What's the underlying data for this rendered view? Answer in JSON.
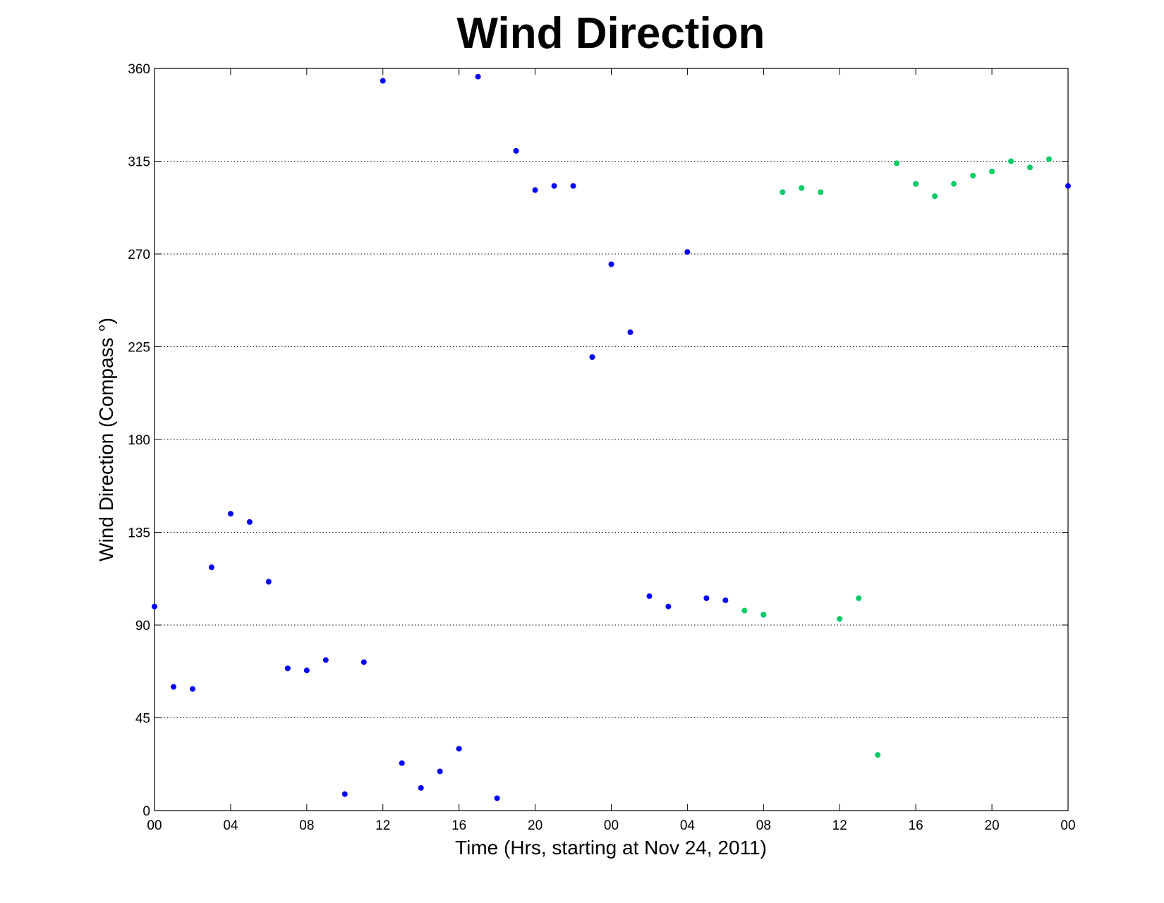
{
  "chart_data": {
    "type": "scatter",
    "title": "Wind Direction",
    "xlabel": "Time (Hrs, starting at Nov 24, 2011)",
    "ylabel": "Wind Direction (Compass  °)",
    "xlim": [
      0,
      48
    ],
    "ylim": [
      0,
      360
    ],
    "x_ticks": [
      0,
      4,
      8,
      12,
      16,
      20,
      24,
      28,
      32,
      36,
      40,
      44,
      48
    ],
    "x_tick_labels": [
      "00",
      "04",
      "08",
      "12",
      "16",
      "20",
      "00",
      "04",
      "08",
      "12",
      "16",
      "20",
      "00"
    ],
    "y_ticks": [
      0,
      45,
      90,
      135,
      180,
      225,
      270,
      315,
      360
    ],
    "y_tick_labels": [
      "0",
      "45",
      "90",
      "135",
      "180",
      "225",
      "270",
      "315",
      "360"
    ],
    "grid": "horizontal dotted",
    "series": [
      {
        "color": "#0000ff",
        "points": [
          [
            0,
            99
          ],
          [
            1,
            60
          ],
          [
            2,
            59
          ],
          [
            3,
            118
          ],
          [
            4,
            144
          ],
          [
            5,
            140
          ],
          [
            6,
            111
          ],
          [
            7,
            69
          ],
          [
            8,
            68
          ],
          [
            9,
            73
          ],
          [
            10,
            8
          ],
          [
            11,
            72
          ],
          [
            12,
            354
          ],
          [
            13,
            23
          ],
          [
            14,
            11
          ],
          [
            15,
            19
          ],
          [
            16,
            30
          ],
          [
            17,
            356
          ],
          [
            18,
            6
          ],
          [
            19,
            320
          ],
          [
            20,
            301
          ],
          [
            21,
            303
          ],
          [
            22,
            303
          ],
          [
            23,
            220
          ],
          [
            24,
            265
          ],
          [
            25,
            232
          ],
          [
            26,
            104
          ],
          [
            27,
            99
          ],
          [
            28,
            271
          ],
          [
            29,
            103
          ],
          [
            30,
            102
          ],
          [
            32,
            95
          ],
          [
            40,
            304
          ],
          [
            48,
            303
          ]
        ]
      },
      {
        "color": "#00cc66",
        "points": [
          [
            31,
            97
          ],
          [
            32,
            95
          ],
          [
            33,
            300
          ],
          [
            34,
            302
          ],
          [
            35,
            300
          ],
          [
            36,
            93
          ],
          [
            37,
            103
          ],
          [
            38,
            27
          ],
          [
            39,
            314
          ],
          [
            40,
            304
          ],
          [
            41,
            298
          ],
          [
            42,
            304
          ],
          [
            43,
            308
          ],
          [
            44,
            310
          ],
          [
            45,
            315
          ],
          [
            46,
            312
          ],
          [
            47,
            316
          ]
        ]
      }
    ]
  }
}
